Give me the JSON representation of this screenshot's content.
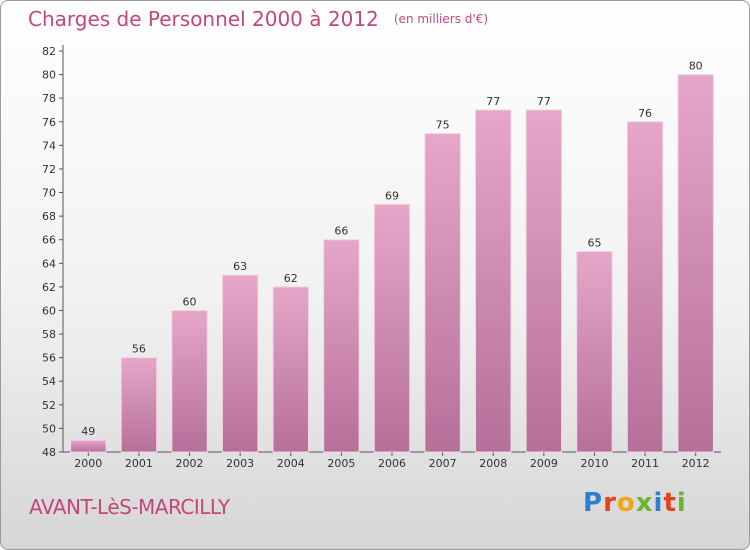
{
  "chart_data": {
    "type": "bar",
    "title": "Charges de Personnel 2000 à 2012",
    "subtitle": "(en milliers d'€)",
    "categories": [
      "2000",
      "2001",
      "2002",
      "2003",
      "2004",
      "2005",
      "2006",
      "2007",
      "2008",
      "2009",
      "2010",
      "2011",
      "2012"
    ],
    "values": [
      49,
      56,
      60,
      63,
      62,
      66,
      69,
      75,
      77,
      77,
      65,
      76,
      80
    ],
    "ylim": [
      48,
      82
    ],
    "yticks": [
      48,
      50,
      52,
      54,
      56,
      58,
      60,
      62,
      64,
      66,
      68,
      70,
      72,
      74,
      76,
      78,
      80,
      82
    ],
    "grid": false,
    "bar_color": "#d98fb6"
  },
  "footer": {
    "commune": "AVANT-LèS-MARCILLY",
    "logo_letters": [
      {
        "ch": "P",
        "color": "#2f7fd1"
      },
      {
        "ch": "r",
        "color": "#e2431a"
      },
      {
        "ch": "o",
        "color": "#f2a516"
      },
      {
        "ch": "x",
        "color": "#6bb52f"
      },
      {
        "ch": "i",
        "color": "#2f7fd1"
      },
      {
        "ch": "t",
        "color": "#e2431a"
      },
      {
        "ch": "i",
        "color": "#6bb52f"
      }
    ]
  }
}
